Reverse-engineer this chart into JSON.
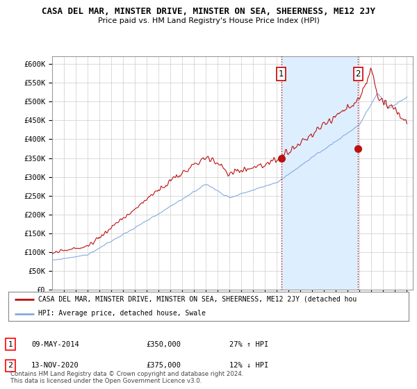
{
  "title": "CASA DEL MAR, MINSTER DRIVE, MINSTER ON SEA, SHEERNESS, ME12 2JY",
  "subtitle": "Price paid vs. HM Land Registry's House Price Index (HPI)",
  "ylabel_ticks": [
    "£0",
    "£50K",
    "£100K",
    "£150K",
    "£200K",
    "£250K",
    "£300K",
    "£350K",
    "£400K",
    "£450K",
    "£500K",
    "£550K",
    "£600K"
  ],
  "ytick_values": [
    0,
    50000,
    100000,
    150000,
    200000,
    250000,
    300000,
    350000,
    400000,
    450000,
    500000,
    550000,
    600000
  ],
  "ylim": [
    0,
    620000
  ],
  "x_start_year": 1995,
  "x_end_year": 2025,
  "sale1_x": 2014.37,
  "sale1_price": 350000,
  "sale1_label": "1",
  "sale2_x": 2020.87,
  "sale2_price": 375000,
  "sale2_label": "2",
  "red_line_color": "#bb1111",
  "blue_line_color": "#88aadd",
  "shade_color": "#ddeeff",
  "legend_red_label": "CASA DEL MAR, MINSTER DRIVE, MINSTER ON SEA, SHEERNESS, ME12 2JY (detached hou",
  "legend_blue_label": "HPI: Average price, detached house, Swale",
  "footer_text": "Contains HM Land Registry data © Crown copyright and database right 2024.\nThis data is licensed under the Open Government Licence v3.0.",
  "background_color": "#ffffff",
  "grid_color": "#cccccc"
}
